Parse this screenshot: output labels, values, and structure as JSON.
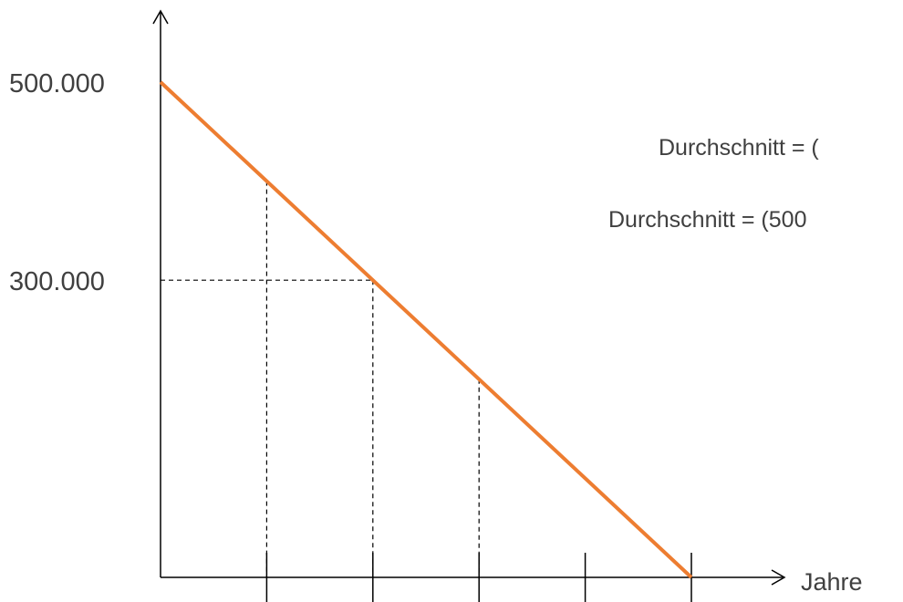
{
  "chart_data": {
    "type": "line",
    "title": "",
    "xlabel": "Jahre",
    "ylabel": "",
    "x": [
      0,
      1,
      2,
      3,
      4,
      5
    ],
    "xlim": [
      0,
      5
    ],
    "ylim": [
      0,
      500000
    ],
    "y_ticks": [
      {
        "value": 500000,
        "label": "500.000"
      },
      {
        "value": 300000,
        "label": "300.000"
      }
    ],
    "series": [
      {
        "points": [
          [
            0,
            500000
          ],
          [
            5,
            0
          ]
        ],
        "color": "#ED7D31"
      }
    ],
    "reference_lines": [
      {
        "kind": "vertical",
        "x": 1,
        "y": 400000
      },
      {
        "kind": "vertical",
        "x": 2,
        "y": 300000
      },
      {
        "kind": "vertical",
        "x": 3,
        "y": 200000
      },
      {
        "kind": "horizontal",
        "x": 2,
        "y": 300000
      }
    ],
    "annotations": [
      "Durchschnitt = (",
      "Durchschnitt = (500"
    ],
    "grid": false,
    "legend": "none",
    "colors": {
      "line": "#ED7D31",
      "axis": "#000000",
      "text": "#404040"
    }
  }
}
